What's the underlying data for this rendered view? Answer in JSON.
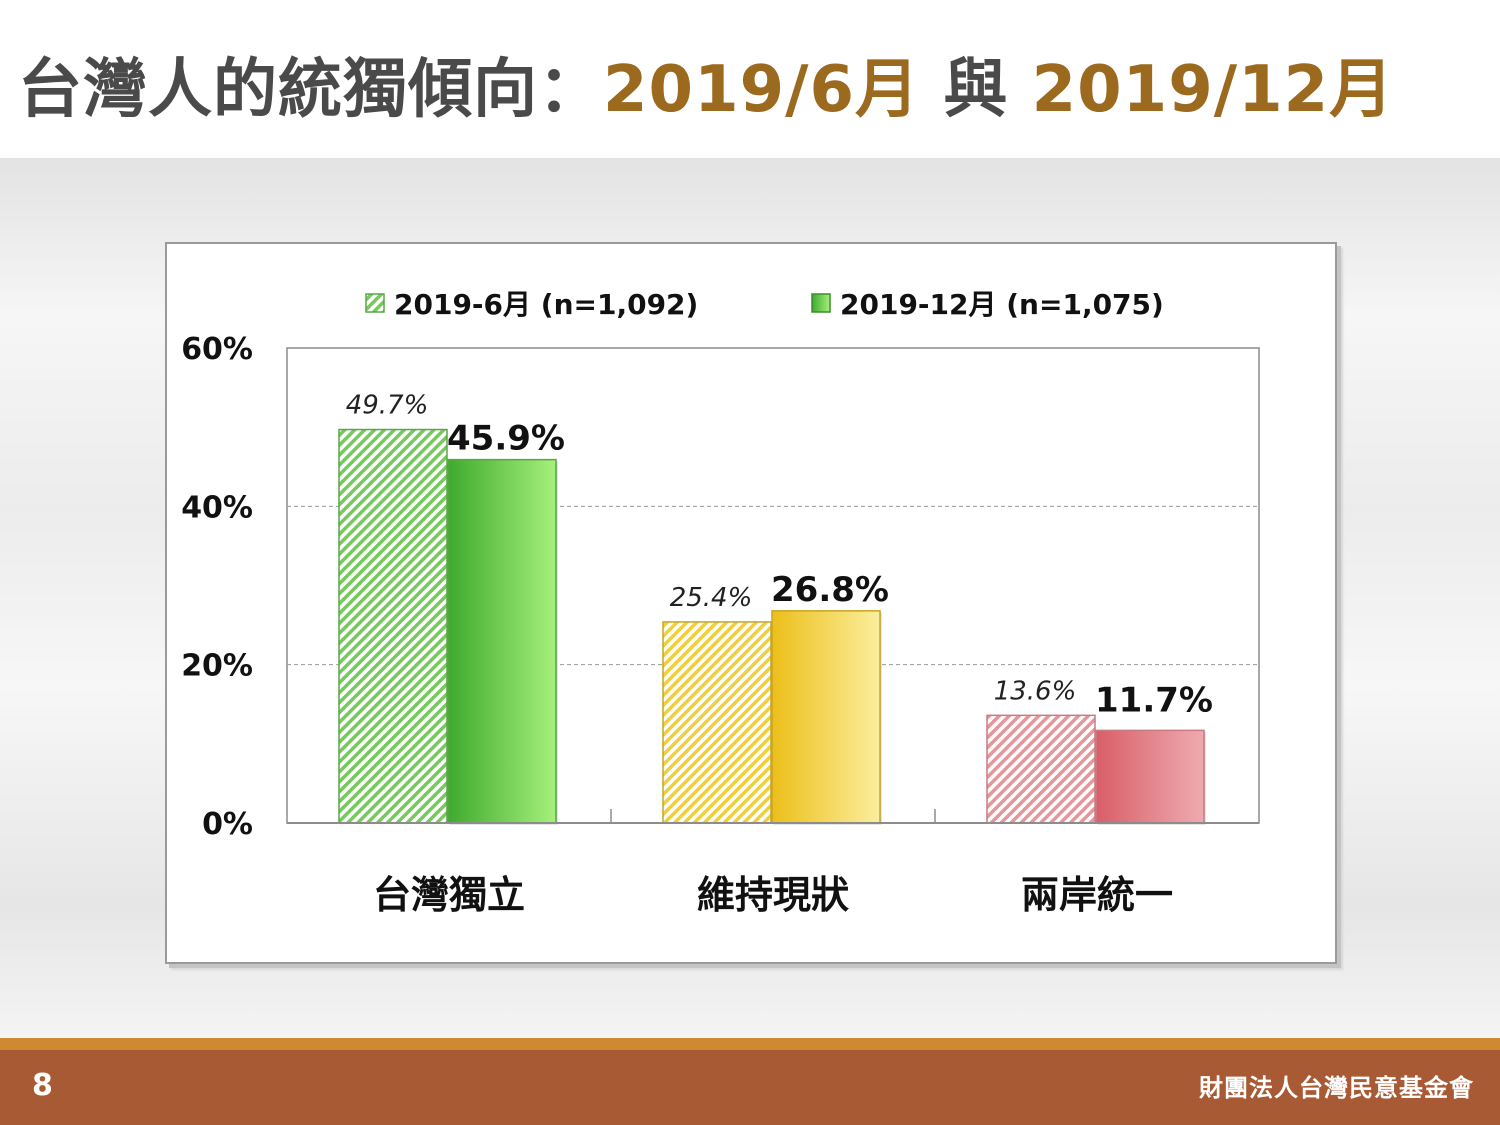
{
  "title": {
    "main": "台灣人的統獨傾向：",
    "part1": "2019/6月",
    "connector": " 與 ",
    "part2": "2019/12月"
  },
  "colors": {
    "title_gray": "#4a4a4a",
    "title_gold": "#9b6a1f",
    "footer_bar": "#a85a35",
    "footer_line": "#cf8a2f",
    "independence": "#55bb3a",
    "status_quo": "#eec21f",
    "unification": "#dd6b72"
  },
  "footer": {
    "page_number": "8",
    "organization": "財團法人台灣民意基金會"
  },
  "chart_data": {
    "type": "bar",
    "categories": [
      "台灣獨立",
      "維持現狀",
      "兩岸統一"
    ],
    "series": [
      {
        "name": "2019-6月 (n=1,092)",
        "values": [
          49.7,
          25.4,
          13.6
        ],
        "labels": [
          "49.7%",
          "25.4%",
          "13.6%"
        ],
        "style": "hatched"
      },
      {
        "name": "2019-12月 (n=1,075)",
        "values": [
          45.9,
          26.8,
          11.7
        ],
        "labels": [
          "45.9%",
          "26.8%",
          "11.7%"
        ],
        "style": "solid"
      }
    ],
    "ylim": [
      0,
      60
    ],
    "yticks": [
      0,
      20,
      40,
      60
    ],
    "ytick_labels": [
      "0%",
      "20%",
      "40%",
      "60%"
    ],
    "grid": "dashed horizontal",
    "legend": "top"
  }
}
